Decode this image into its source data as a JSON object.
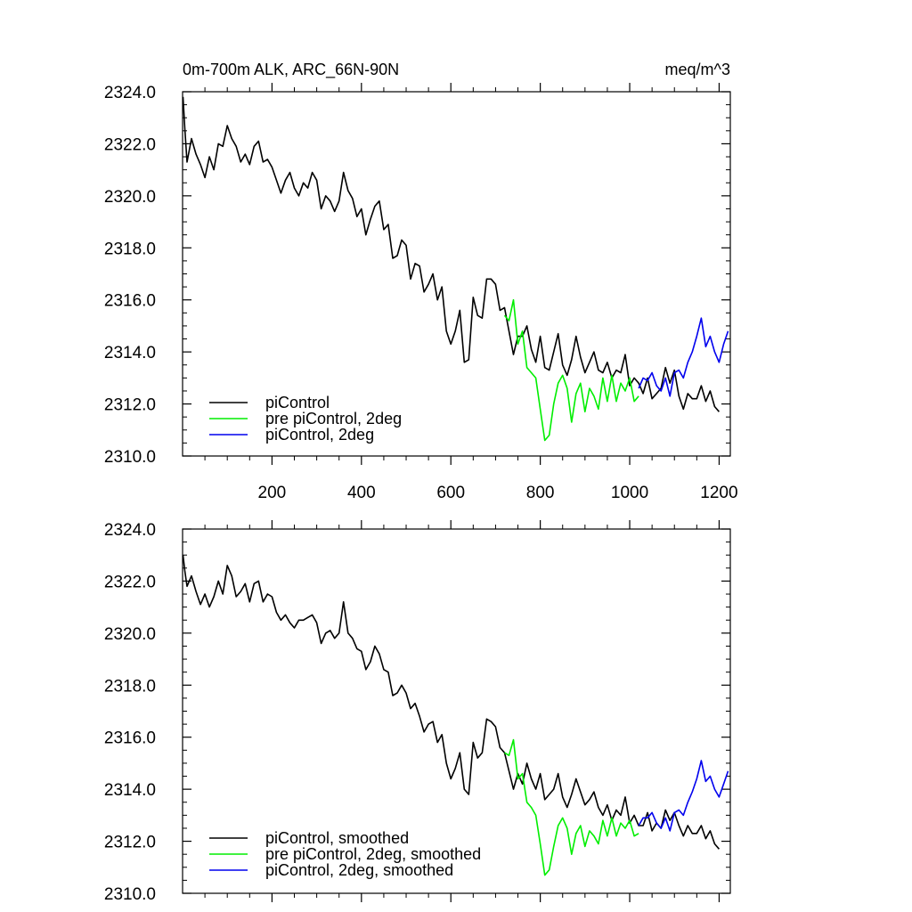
{
  "header": {
    "title": "0m-700m ALK, ARC_66N-90N",
    "units": "meq/m^3"
  },
  "colors": {
    "piControl": "#000000",
    "pre_piControl_2deg": "#00ee00",
    "piControl_2deg": "#0000ee"
  },
  "chart_data": [
    {
      "type": "line",
      "title": "0m-700m ALK, ARC_66N-90N",
      "units": "meq/m^3",
      "xlim": [
        0,
        1225
      ],
      "ylim": [
        2310.0,
        2324.0
      ],
      "x_ticks": [
        200,
        400,
        600,
        800,
        1000,
        1200
      ],
      "x_tick_labels": [
        "200",
        "400",
        "600",
        "800",
        "1000",
        "1200"
      ],
      "y_ticks": [
        2310.0,
        2312.0,
        2314.0,
        2316.0,
        2318.0,
        2320.0,
        2322.0,
        2324.0
      ],
      "y_tick_labels": [
        "2310.0",
        "2312.0",
        "2314.0",
        "2316.0",
        "2318.0",
        "2320.0",
        "2322.0",
        "2324.0"
      ],
      "legend_position": "bottom-left",
      "series": [
        {
          "name": "piControl",
          "color": "#000000",
          "x": [
            1,
            5,
            10,
            20,
            30,
            40,
            50,
            60,
            70,
            80,
            90,
            100,
            110,
            120,
            130,
            140,
            150,
            160,
            170,
            180,
            190,
            200,
            210,
            220,
            230,
            240,
            250,
            260,
            270,
            280,
            290,
            300,
            310,
            320,
            330,
            340,
            350,
            360,
            370,
            380,
            390,
            400,
            410,
            420,
            430,
            440,
            450,
            460,
            470,
            480,
            490,
            500,
            510,
            520,
            530,
            540,
            550,
            560,
            570,
            580,
            590,
            600,
            610,
            620,
            630,
            640,
            650,
            660,
            670,
            680,
            690,
            700,
            710,
            720,
            730,
            740,
            750,
            760,
            770,
            780,
            790,
            800,
            810,
            820,
            830,
            840,
            850,
            860,
            870,
            880,
            890,
            900,
            910,
            920,
            930,
            940,
            950,
            960,
            970,
            980,
            990,
            1000,
            1010,
            1020,
            1030,
            1040,
            1050,
            1060,
            1070,
            1080,
            1090,
            1100,
            1110,
            1120,
            1130,
            1140,
            1150,
            1160,
            1170,
            1180,
            1190,
            1200
          ],
          "values": [
            2323.8,
            2322.6,
            2321.3,
            2322.2,
            2321.6,
            2321.2,
            2320.7,
            2321.5,
            2321.0,
            2322.0,
            2321.9,
            2322.7,
            2322.2,
            2321.9,
            2321.3,
            2321.6,
            2321.2,
            2321.9,
            2322.1,
            2321.3,
            2321.4,
            2321.1,
            2320.6,
            2320.1,
            2320.6,
            2320.9,
            2320.3,
            2320.0,
            2320.5,
            2320.3,
            2320.9,
            2320.6,
            2319.5,
            2320.0,
            2319.8,
            2319.4,
            2319.8,
            2320.9,
            2320.2,
            2319.9,
            2319.2,
            2319.5,
            2318.5,
            2319.1,
            2319.6,
            2319.8,
            2318.7,
            2318.9,
            2317.6,
            2317.7,
            2318.3,
            2318.1,
            2316.8,
            2317.4,
            2317.3,
            2316.3,
            2316.6,
            2317.0,
            2316.0,
            2316.5,
            2314.8,
            2314.3,
            2314.8,
            2315.6,
            2313.6,
            2313.7,
            2316.1,
            2315.4,
            2315.3,
            2316.8,
            2316.8,
            2316.6,
            2315.6,
            2315.7,
            2314.8,
            2313.9,
            2314.6,
            2314.6,
            2315.0,
            2314.1,
            2313.6,
            2314.6,
            2313.4,
            2313.3,
            2314.0,
            2314.7,
            2313.5,
            2313.1,
            2313.7,
            2314.6,
            2313.8,
            2313.2,
            2313.6,
            2314.0,
            2313.3,
            2313.2,
            2313.6,
            2313.0,
            2313.3,
            2313.2,
            2313.9,
            2312.7,
            2313.0,
            2312.8,
            2312.4,
            2313.0,
            2312.2,
            2312.4,
            2312.6,
            2313.4,
            2312.8,
            2313.3,
            2312.3,
            2311.8,
            2312.4,
            2312.2,
            2312.2,
            2312.7,
            2312.1,
            2312.5,
            2311.9,
            2311.7
          ]
        },
        {
          "name": "pre piControl, 2deg",
          "color": "#00ee00",
          "x": [
            720,
            730,
            740,
            750,
            760,
            770,
            780,
            790,
            800,
            810,
            820,
            830,
            840,
            850,
            860,
            870,
            880,
            890,
            900,
            910,
            920,
            930,
            940,
            950,
            960,
            970,
            980,
            990,
            1000,
            1010,
            1020
          ],
          "values": [
            2315.4,
            2315.2,
            2316.0,
            2314.3,
            2314.8,
            2313.4,
            2313.2,
            2313.0,
            2311.8,
            2310.6,
            2310.8,
            2312.0,
            2312.8,
            2313.1,
            2312.6,
            2311.3,
            2312.4,
            2312.8,
            2311.7,
            2312.6,
            2312.3,
            2311.8,
            2313.0,
            2312.1,
            2313.1,
            2312.1,
            2312.8,
            2312.5,
            2313.0,
            2312.1,
            2312.3
          ]
        },
        {
          "name": "piControl, 2deg",
          "color": "#0000ee",
          "x": [
            1020,
            1030,
            1040,
            1050,
            1060,
            1070,
            1080,
            1090,
            1100,
            1110,
            1120,
            1130,
            1140,
            1150,
            1160,
            1170,
            1180,
            1190,
            1200,
            1210,
            1220
          ],
          "values": [
            2312.6,
            2313.0,
            2312.9,
            2313.2,
            2312.7,
            2312.5,
            2313.0,
            2312.3,
            2313.2,
            2313.3,
            2313.0,
            2313.6,
            2314.0,
            2314.6,
            2315.3,
            2314.2,
            2314.6,
            2314.0,
            2313.6,
            2314.3,
            2314.8
          ]
        }
      ]
    },
    {
      "type": "line",
      "xlim": [
        0,
        1225
      ],
      "ylim": [
        2310.0,
        2324.0
      ],
      "x_ticks": [
        200,
        400,
        600,
        800,
        1000,
        1200
      ],
      "y_ticks": [
        2310.0,
        2312.0,
        2314.0,
        2316.0,
        2318.0,
        2320.0,
        2322.0,
        2324.0
      ],
      "y_tick_labels": [
        "2310.0",
        "2312.0",
        "2314.0",
        "2316.0",
        "2318.0",
        "2320.0",
        "2322.0",
        "2324.0"
      ],
      "legend_position": "bottom-left",
      "series": [
        {
          "name": "piControl, smoothed",
          "color": "#000000",
          "x": [
            1,
            5,
            10,
            20,
            30,
            40,
            50,
            60,
            70,
            80,
            90,
            100,
            110,
            120,
            130,
            140,
            150,
            160,
            170,
            180,
            190,
            200,
            210,
            220,
            230,
            240,
            250,
            260,
            270,
            280,
            290,
            300,
            310,
            320,
            330,
            340,
            350,
            360,
            370,
            380,
            390,
            400,
            410,
            420,
            430,
            440,
            450,
            460,
            470,
            480,
            490,
            500,
            510,
            520,
            530,
            540,
            550,
            560,
            570,
            580,
            590,
            600,
            610,
            620,
            630,
            640,
            650,
            660,
            670,
            680,
            690,
            700,
            710,
            720,
            730,
            740,
            750,
            760,
            770,
            780,
            790,
            800,
            810,
            820,
            830,
            840,
            850,
            860,
            870,
            880,
            890,
            900,
            910,
            920,
            930,
            940,
            950,
            960,
            970,
            980,
            990,
            1000,
            1010,
            1020,
            1030,
            1040,
            1050,
            1060,
            1070,
            1080,
            1090,
            1100,
            1110,
            1120,
            1130,
            1140,
            1150,
            1160,
            1170,
            1180,
            1190,
            1200
          ],
          "values": [
            2323.0,
            2322.4,
            2321.8,
            2322.2,
            2321.6,
            2321.1,
            2321.5,
            2321.0,
            2321.4,
            2322.0,
            2321.5,
            2322.6,
            2322.2,
            2321.4,
            2321.6,
            2321.9,
            2321.2,
            2321.9,
            2322.0,
            2321.2,
            2321.5,
            2321.4,
            2320.8,
            2320.5,
            2320.7,
            2320.4,
            2320.2,
            2320.5,
            2320.5,
            2320.6,
            2320.7,
            2320.4,
            2319.6,
            2320.0,
            2320.1,
            2319.8,
            2320.0,
            2321.2,
            2320.0,
            2319.8,
            2319.4,
            2319.3,
            2318.6,
            2318.9,
            2319.5,
            2319.2,
            2318.6,
            2318.5,
            2317.6,
            2317.7,
            2318.0,
            2317.7,
            2317.1,
            2317.3,
            2316.8,
            2316.2,
            2316.5,
            2316.6,
            2315.8,
            2316.1,
            2315.0,
            2314.4,
            2314.8,
            2315.4,
            2314.0,
            2313.8,
            2315.8,
            2315.2,
            2315.4,
            2316.7,
            2316.6,
            2316.4,
            2315.6,
            2315.4,
            2314.7,
            2314.0,
            2314.6,
            2314.2,
            2315.0,
            2314.4,
            2314.0,
            2314.6,
            2313.6,
            2313.8,
            2314.0,
            2314.6,
            2313.7,
            2313.3,
            2313.8,
            2314.4,
            2313.9,
            2313.4,
            2313.6,
            2313.9,
            2313.3,
            2313.0,
            2313.4,
            2312.8,
            2313.2,
            2313.0,
            2313.7,
            2312.7,
            2313.0,
            2312.6,
            2312.6,
            2313.1,
            2312.4,
            2312.7,
            2312.5,
            2313.2,
            2312.8,
            2313.1,
            2312.6,
            2312.2,
            2312.6,
            2312.3,
            2312.3,
            2312.6,
            2312.1,
            2312.4,
            2311.9,
            2311.7
          ]
        },
        {
          "name": "pre piControl, 2deg, smoothed",
          "color": "#00ee00",
          "x": [
            720,
            730,
            740,
            750,
            760,
            770,
            780,
            790,
            800,
            810,
            820,
            830,
            840,
            850,
            860,
            870,
            880,
            890,
            900,
            910,
            920,
            930,
            940,
            950,
            960,
            970,
            980,
            990,
            1000,
            1010,
            1020
          ],
          "values": [
            2315.4,
            2315.3,
            2315.9,
            2314.4,
            2314.6,
            2313.5,
            2313.3,
            2313.0,
            2311.9,
            2310.7,
            2310.9,
            2311.8,
            2312.6,
            2312.9,
            2312.5,
            2311.5,
            2312.3,
            2312.6,
            2311.8,
            2312.4,
            2312.2,
            2311.9,
            2312.8,
            2312.2,
            2312.9,
            2312.2,
            2312.7,
            2312.5,
            2312.8,
            2312.2,
            2312.3
          ]
        },
        {
          "name": "piControl, 2deg, smoothed",
          "color": "#0000ee",
          "x": [
            1020,
            1030,
            1040,
            1050,
            1060,
            1070,
            1080,
            1090,
            1100,
            1110,
            1120,
            1130,
            1140,
            1150,
            1160,
            1170,
            1180,
            1190,
            1200,
            1210,
            1220
          ],
          "values": [
            2312.6,
            2312.9,
            2312.9,
            2313.1,
            2312.7,
            2312.5,
            2312.9,
            2312.4,
            2313.1,
            2313.2,
            2313.0,
            2313.5,
            2313.9,
            2314.4,
            2315.1,
            2314.3,
            2314.5,
            2314.0,
            2313.7,
            2314.2,
            2314.7
          ]
        }
      ]
    }
  ]
}
